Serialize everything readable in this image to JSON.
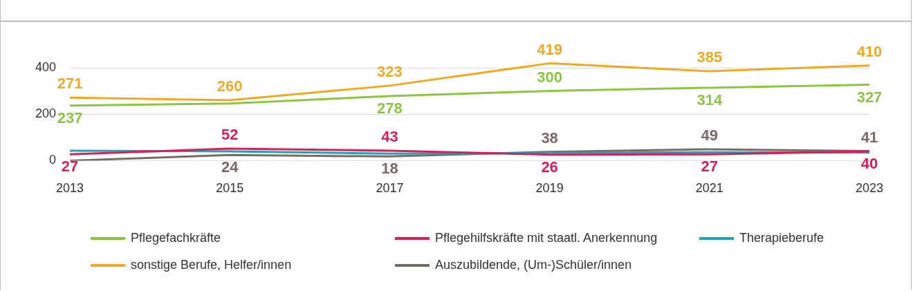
{
  "chart_data": {
    "type": "line",
    "categories": [
      "2013",
      "2015",
      "2017",
      "2019",
      "2021",
      "2023"
    ],
    "ylim": [
      0,
      600
    ],
    "yticks": [
      0,
      200,
      400
    ],
    "grid": "y",
    "legend": "bottom",
    "marker": "none",
    "line_style": "solid",
    "series": [
      {
        "name": "Pflegefachkräfte",
        "color": "#8cc63f",
        "values": [
          237,
          246,
          278,
          300,
          314,
          327
        ],
        "value_labels": [
          "237",
          null,
          "278",
          "300",
          "314",
          "327"
        ]
      },
      {
        "name": "Pflegehilfskräfte mit staatl. Anerkennung",
        "color": "#d81e5b",
        "values": [
          27,
          52,
          43,
          26,
          27,
          40
        ],
        "value_labels": [
          "27",
          "52",
          "43",
          "26",
          "27",
          "40"
        ]
      },
      {
        "name": "Therapieberufe",
        "color": "#1aa6b7",
        "values": [
          43,
          40,
          30,
          33,
          36,
          35
        ]
      },
      {
        "name": "sonstige Berufe, Helfer/innen",
        "color": "#f0a922",
        "values": [
          271,
          260,
          323,
          419,
          385,
          410
        ],
        "value_labels": [
          "271",
          "260",
          "323",
          "419",
          "385",
          "410"
        ]
      },
      {
        "name": "Auszubildende, (Um-)Schüler/innen",
        "color": "#7a6a64",
        "values": [
          0,
          24,
          18,
          38,
          49,
          41
        ],
        "value_labels": [
          null,
          "24",
          "18",
          "38",
          "49",
          "41"
        ]
      }
    ]
  }
}
